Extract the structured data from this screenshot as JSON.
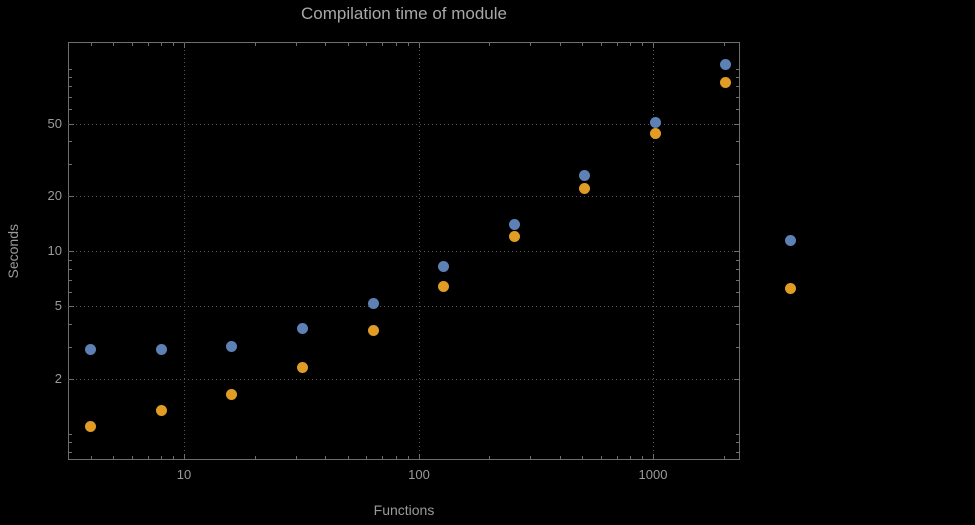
{
  "chart_data": {
    "type": "scatter",
    "title": "Compilation time of module",
    "xlabel": "Functions",
    "ylabel": "Seconds",
    "x_scale": "log",
    "y_scale": "log",
    "xlim": [
      3.2,
      2350
    ],
    "ylim": [
      0.72,
      140
    ],
    "grid": true,
    "x": [
      4,
      8,
      16,
      32,
      64,
      128,
      256,
      512,
      1024,
      2048
    ],
    "series": [
      {
        "name": "blue-series",
        "color": "#5e81b5",
        "values": [
          2.9,
          2.9,
          3.0,
          3.8,
          5.2,
          8.3,
          14,
          26,
          51,
          105
        ]
      },
      {
        "name": "orange-series",
        "color": "#e09c24",
        "values": [
          1.1,
          1.35,
          1.65,
          2.3,
          3.7,
          6.4,
          12,
          22,
          44,
          84
        ]
      }
    ],
    "x_ticks": [
      {
        "value": 10,
        "label": "10"
      },
      {
        "value": 100,
        "label": "100"
      },
      {
        "value": 1000,
        "label": "1000"
      }
    ],
    "y_ticks": [
      {
        "value": 2,
        "label": "2"
      },
      {
        "value": 5,
        "label": "5"
      },
      {
        "value": 10,
        "label": "10"
      },
      {
        "value": 20,
        "label": "20"
      },
      {
        "value": 50,
        "label": "50"
      }
    ],
    "legend": {
      "position": "outside-right",
      "markers": [
        "#5e81b5",
        "#e09c24"
      ]
    },
    "colors": {
      "background": "#000000",
      "frame": "#6e6e6e",
      "grid": "#575757",
      "text": "#9a9a9a",
      "title_text": "#a8a8a8"
    }
  }
}
